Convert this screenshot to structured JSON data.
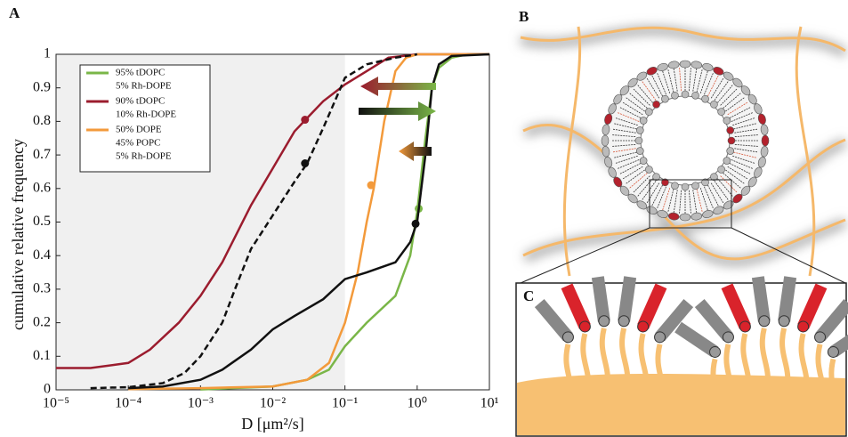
{
  "panels": {
    "a": "A",
    "b": "B",
    "c": "C"
  },
  "chart_data": {
    "type": "line",
    "xlabel": "D [μm²/s]",
    "ylabel": "cumulative relative frequency",
    "xscale": "log",
    "xlim": [
      1e-05,
      10
    ],
    "ylim": [
      0,
      1
    ],
    "xticks": [
      {
        "value": 1e-05,
        "label": "10⁻⁵"
      },
      {
        "value": 0.0001,
        "label": "10⁻⁴"
      },
      {
        "value": 0.001,
        "label": "10⁻³"
      },
      {
        "value": 0.01,
        "label": "10⁻²"
      },
      {
        "value": 0.1,
        "label": "10⁻¹"
      },
      {
        "value": 1,
        "label": "10⁰"
      },
      {
        "value": 10,
        "label": "10¹"
      }
    ],
    "yticks": [
      0,
      0.1,
      0.2,
      0.3,
      0.4,
      0.5,
      0.6,
      0.7,
      0.8,
      0.9,
      1
    ],
    "shaded_region": [
      1e-05,
      0.1
    ],
    "series": [
      {
        "name": [
          "95% tDOPC",
          "5% Rh-DOPE"
        ],
        "color": "#7ab648",
        "x": [
          0.001,
          0.01,
          0.03,
          0.06,
          0.1,
          0.2,
          0.5,
          0.8,
          1,
          1.3,
          1.6,
          2,
          3,
          5,
          10
        ],
        "values": [
          0.001,
          0.01,
          0.03,
          0.06,
          0.13,
          0.2,
          0.28,
          0.4,
          0.53,
          0.75,
          0.9,
          0.96,
          0.99,
          1,
          1
        ],
        "marker": [
          1.05,
          0.54
        ]
      },
      {
        "name": [
          "90% tDOPC",
          "10% Rh-DOPE"
        ],
        "color": "#9b1c2e",
        "x": [
          1e-05,
          3e-05,
          0.0001,
          0.0002,
          0.0005,
          0.001,
          0.002,
          0.005,
          0.01,
          0.02,
          0.03,
          0.05,
          0.1,
          0.2,
          0.4,
          1,
          2,
          10
        ],
        "values": [
          0.065,
          0.065,
          0.08,
          0.12,
          0.2,
          0.28,
          0.38,
          0.55,
          0.66,
          0.77,
          0.81,
          0.86,
          0.91,
          0.95,
          0.99,
          1,
          1,
          1
        ],
        "marker": [
          0.028,
          0.805
        ]
      },
      {
        "name": [
          "50% DOPE",
          "45% POPC",
          "5% Rh-DOPE"
        ],
        "color": "#f39a3b",
        "x": [
          0.0001,
          0.001,
          0.01,
          0.03,
          0.06,
          0.1,
          0.15,
          0.2,
          0.25,
          0.35,
          0.5,
          0.7,
          1,
          10
        ],
        "values": [
          0.002,
          0.005,
          0.01,
          0.03,
          0.08,
          0.2,
          0.35,
          0.5,
          0.6,
          0.8,
          0.95,
          0.99,
          1,
          1
        ],
        "marker": [
          0.23,
          0.61
        ]
      },
      {
        "color": "#111111",
        "x": [
          0.0001,
          0.0003,
          0.001,
          0.002,
          0.005,
          0.01,
          0.02,
          0.05,
          0.1,
          0.2,
          0.5,
          0.8,
          1,
          1.3,
          1.6,
          2,
          3,
          10
        ],
        "values": [
          0.005,
          0.01,
          0.03,
          0.06,
          0.12,
          0.18,
          0.22,
          0.27,
          0.33,
          0.35,
          0.38,
          0.44,
          0.5,
          0.7,
          0.9,
          0.97,
          0.995,
          1
        ],
        "marker": [
          0.95,
          0.495
        ]
      },
      {
        "color": "#111111",
        "dash": true,
        "x": [
          3e-05,
          0.0001,
          0.0003,
          0.0006,
          0.001,
          0.002,
          0.003,
          0.005,
          0.01,
          0.02,
          0.03,
          0.05,
          0.1,
          0.2,
          0.5,
          1
        ],
        "values": [
          0.005,
          0.008,
          0.02,
          0.05,
          0.1,
          0.2,
          0.3,
          0.42,
          0.52,
          0.62,
          0.675,
          0.78,
          0.93,
          0.97,
          0.99,
          1
        ],
        "marker": [
          0.028,
          0.675
        ]
      }
    ]
  }
}
